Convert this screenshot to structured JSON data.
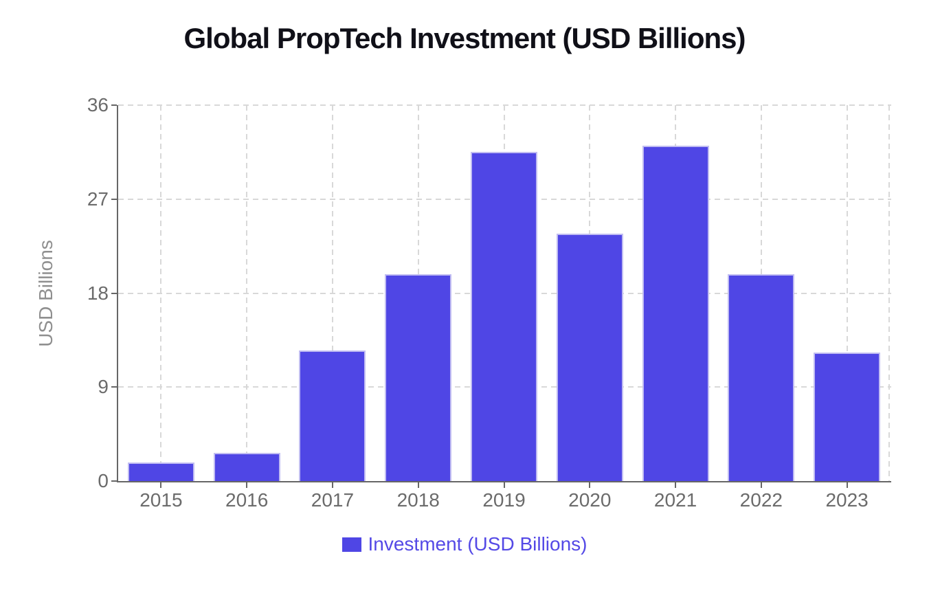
{
  "title": "Global PropTech Investment (USD Billions)",
  "y_axis": {
    "label": "USD Billions",
    "tick_labels": [
      "0",
      "9",
      "18",
      "27",
      "36"
    ]
  },
  "x_axis": {
    "tick_labels": [
      "2015",
      "2016",
      "2017",
      "2018",
      "2019",
      "2020",
      "2021",
      "2022",
      "2023"
    ]
  },
  "legend": {
    "label": "Investment (USD Billions)"
  },
  "colors": {
    "background": "#ffffff",
    "title": "#101018",
    "bar": "#4f46e5",
    "bar_border": "#c1bdf2",
    "legend_text": "#5449e6",
    "axis": "#666666",
    "tick_label": "#6b6b6b",
    "axis_title": "#8f8f8f",
    "grid": "#d8d8d8"
  },
  "chart_data": {
    "type": "bar",
    "title": "Global PropTech Investment (USD Billions)",
    "xlabel": "",
    "ylabel": "USD Billions",
    "categories": [
      "2015",
      "2016",
      "2017",
      "2018",
      "2019",
      "2020",
      "2021",
      "2022",
      "2023"
    ],
    "series": [
      {
        "name": "Investment (USD Billions)",
        "values": [
          1.8,
          2.7,
          12.5,
          19.8,
          31.5,
          23.7,
          32.1,
          19.8,
          12.3
        ]
      }
    ],
    "ylim": [
      0,
      36
    ],
    "yticks": [
      0,
      9,
      18,
      27,
      36
    ],
    "grid": true,
    "grid_style": "dashed",
    "legend_position": "bottom"
  }
}
